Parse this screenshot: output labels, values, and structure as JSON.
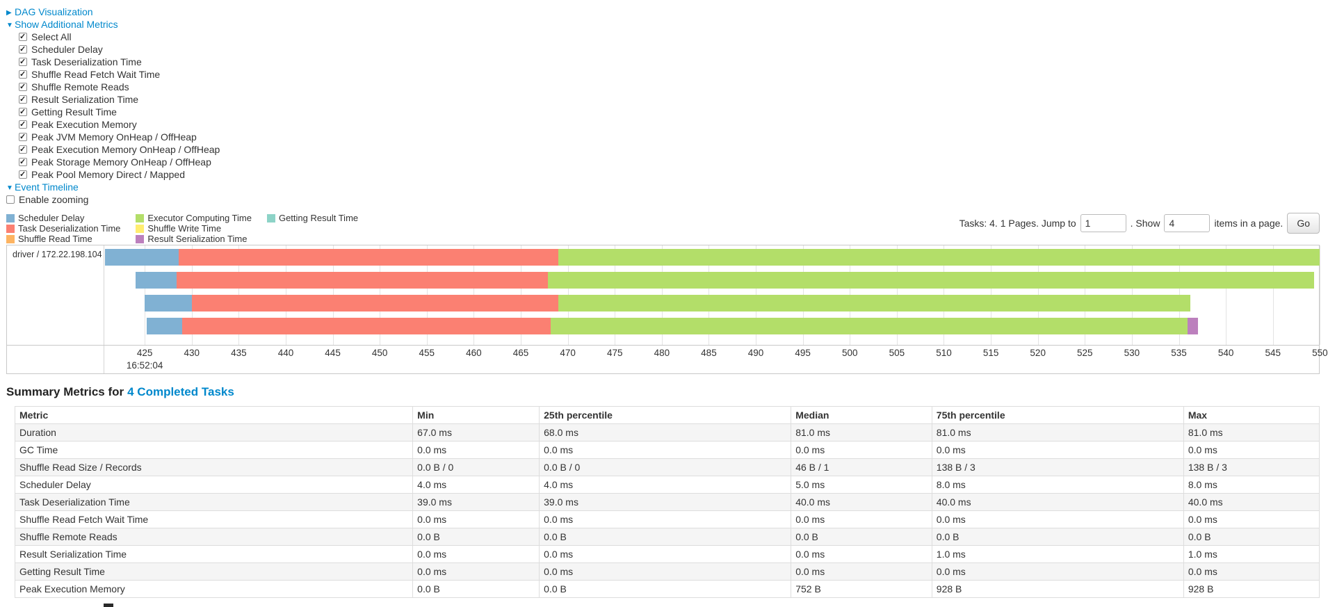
{
  "toggles": {
    "dag_label": "DAG Visualization",
    "metrics_label": "Show Additional Metrics",
    "timeline_label": "Event Timeline",
    "enable_zooming_label": "Enable zooming"
  },
  "additional_metrics": {
    "items": [
      {
        "label": "Select All",
        "checked": true
      },
      {
        "label": "Scheduler Delay",
        "checked": true
      },
      {
        "label": "Task Deserialization Time",
        "checked": true
      },
      {
        "label": "Shuffle Read Fetch Wait Time",
        "checked": true
      },
      {
        "label": "Shuffle Remote Reads",
        "checked": true
      },
      {
        "label": "Result Serialization Time",
        "checked": true
      },
      {
        "label": "Getting Result Time",
        "checked": true
      },
      {
        "label": "Peak Execution Memory",
        "checked": true
      },
      {
        "label": "Peak JVM Memory OnHeap / OffHeap",
        "checked": true
      },
      {
        "label": "Peak Execution Memory OnHeap / OffHeap",
        "checked": true
      },
      {
        "label": "Peak Storage Memory OnHeap / OffHeap",
        "checked": true
      },
      {
        "label": "Peak Pool Memory Direct / Mapped",
        "checked": true
      }
    ]
  },
  "legend": [
    {
      "label": "Scheduler Delay",
      "color": "#80B1D3"
    },
    {
      "label": "Task Deserialization Time",
      "color": "#FB8072"
    },
    {
      "label": "Shuffle Read Time",
      "color": "#FDB462"
    },
    {
      "label": "Executor Computing Time",
      "color": "#B3DE69"
    },
    {
      "label": "Shuffle Write Time",
      "color": "#FFED6F"
    },
    {
      "label": "Result Serialization Time",
      "color": "#BC80BD"
    },
    {
      "label": "Getting Result Time",
      "color": "#8DD3C7"
    }
  ],
  "pagination": {
    "prefix": "Tasks: 4. 1 Pages. Jump to",
    "jump_value": "1",
    "mid": ". Show",
    "show_value": "4",
    "suffix": "items in a page.",
    "go_label": "Go"
  },
  "timeline": {
    "executor_label": "driver / 172.22.198.104",
    "start_time_label": "16:52:04",
    "axis": {
      "min": 420.7,
      "max": 549.9,
      "ticks": [
        425,
        430,
        435,
        440,
        445,
        450,
        455,
        460,
        465,
        470,
        475,
        480,
        485,
        490,
        495,
        500,
        505,
        510,
        515,
        520,
        525,
        530,
        535,
        540,
        545,
        550
      ]
    },
    "bars": [
      {
        "segments": [
          {
            "type": "Scheduler Delay",
            "start": 420.8,
            "end": 428.6
          },
          {
            "type": "Task Deserialization Time",
            "start": 428.6,
            "end": 469.0
          },
          {
            "type": "Executor Computing Time",
            "start": 469.0,
            "end": 550.0
          }
        ]
      },
      {
        "segments": [
          {
            "type": "Scheduler Delay",
            "start": 424.0,
            "end": 428.4
          },
          {
            "type": "Task Deserialization Time",
            "start": 428.4,
            "end": 467.9
          },
          {
            "type": "Executor Computing Time",
            "start": 467.9,
            "end": 549.4
          }
        ]
      },
      {
        "segments": [
          {
            "type": "Scheduler Delay",
            "start": 425.0,
            "end": 430.0
          },
          {
            "type": "Task Deserialization Time",
            "start": 430.0,
            "end": 469.0
          },
          {
            "type": "Executor Computing Time",
            "start": 469.0,
            "end": 536.2
          }
        ]
      },
      {
        "segments": [
          {
            "type": "Scheduler Delay",
            "start": 425.2,
            "end": 429.0
          },
          {
            "type": "Task Deserialization Time",
            "start": 429.0,
            "end": 468.2
          },
          {
            "type": "Executor Computing Time",
            "start": 468.2,
            "end": 535.9
          },
          {
            "type": "Result Serialization Time",
            "start": 535.9,
            "end": 537.0
          }
        ]
      }
    ]
  },
  "summary": {
    "title_prefix": "Summary Metrics for",
    "title_link": "4 Completed Tasks"
  },
  "summary_table": {
    "headers": [
      "Metric",
      "Min",
      "25th percentile",
      "Median",
      "75th percentile",
      "Max"
    ],
    "rows": [
      [
        "Duration",
        "67.0 ms",
        "68.0 ms",
        "81.0 ms",
        "81.0 ms",
        "81.0 ms"
      ],
      [
        "GC Time",
        "0.0 ms",
        "0.0 ms",
        "0.0 ms",
        "0.0 ms",
        "0.0 ms"
      ],
      [
        "Shuffle Read Size / Records",
        "0.0 B / 0",
        "0.0 B / 0",
        "46 B / 1",
        "138 B / 3",
        "138 B / 3"
      ],
      [
        "Scheduler Delay",
        "4.0 ms",
        "4.0 ms",
        "5.0 ms",
        "8.0 ms",
        "8.0 ms"
      ],
      [
        "Task Deserialization Time",
        "39.0 ms",
        "39.0 ms",
        "40.0 ms",
        "40.0 ms",
        "40.0 ms"
      ],
      [
        "Shuffle Read Fetch Wait Time",
        "0.0 ms",
        "0.0 ms",
        "0.0 ms",
        "0.0 ms",
        "0.0 ms"
      ],
      [
        "Shuffle Remote Reads",
        "0.0 B",
        "0.0 B",
        "0.0 B",
        "0.0 B",
        "0.0 B"
      ],
      [
        "Result Serialization Time",
        "0.0 ms",
        "0.0 ms",
        "0.0 ms",
        "1.0 ms",
        "1.0 ms"
      ],
      [
        "Getting Result Time",
        "0.0 ms",
        "0.0 ms",
        "0.0 ms",
        "0.0 ms",
        "0.0 ms"
      ],
      [
        "Peak Execution Memory",
        "0.0 B",
        "0.0 B",
        "752 B",
        "928 B",
        "928 B"
      ]
    ]
  }
}
